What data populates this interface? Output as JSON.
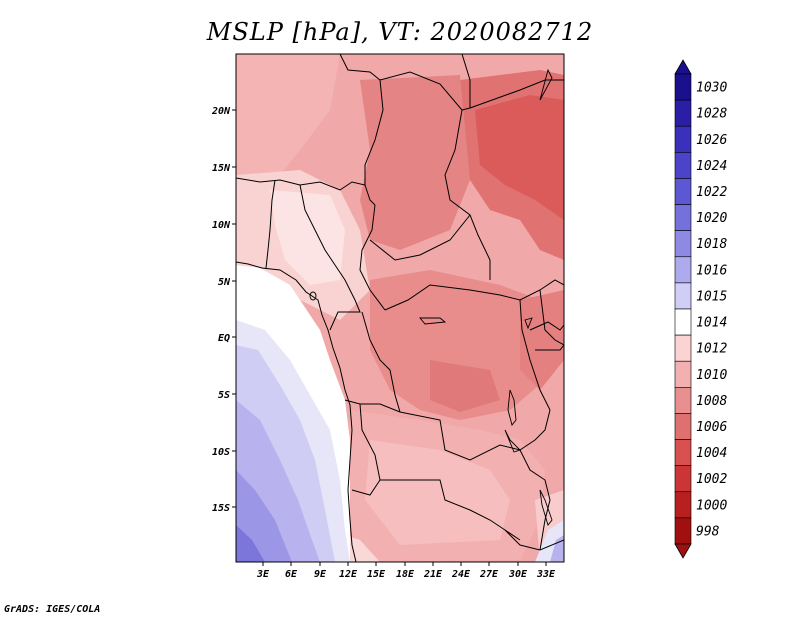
{
  "title": "MSLP [hPa], VT: 2020082712",
  "footer": "GrADS: IGES/COLA",
  "axes": {
    "lat_labels": [
      "20N",
      "15N",
      "10N",
      "5N",
      "EQ",
      "5S",
      "10S",
      "15S"
    ],
    "lon_labels": [
      "3E",
      "6E",
      "9E",
      "12E",
      "15E",
      "18E",
      "21E",
      "24E",
      "27E",
      "30E",
      "33E"
    ]
  },
  "colorbar": {
    "labels": [
      "1030",
      "1028",
      "1026",
      "1024",
      "1022",
      "1020",
      "1018",
      "1016",
      "1015",
      "1014",
      "1012",
      "1010",
      "1008",
      "1006",
      "1004",
      "1002",
      "1000",
      "998"
    ],
    "colors": [
      "#1a0f8c",
      "#2a1ea6",
      "#3a30bb",
      "#4b44c8",
      "#5c58d4",
      "#7470dc",
      "#8e8ae4",
      "#aeaaee",
      "#d0ceF6",
      "#ffffff",
      "#fbd3d3",
      "#f2b0b0",
      "#e89090",
      "#df7070",
      "#d85050",
      "#cc3535",
      "#b82020",
      "#a01010"
    ],
    "top_color": "#1a0f8c",
    "bottom_color": "#a01010"
  },
  "map": {
    "region": "Central and Southern-Central Africa",
    "variable": "Mean sea level pressure",
    "ocean_colors": [
      "#ffffff",
      "#e6e6f8",
      "#cfcdf4",
      "#b8b3ee",
      "#9c96e6",
      "#7c76da"
    ],
    "land_colors": [
      "#fde4e4",
      "#f8c8c8",
      "#f0a8a8",
      "#e88c8c",
      "#e07272",
      "#db5a5a"
    ]
  }
}
